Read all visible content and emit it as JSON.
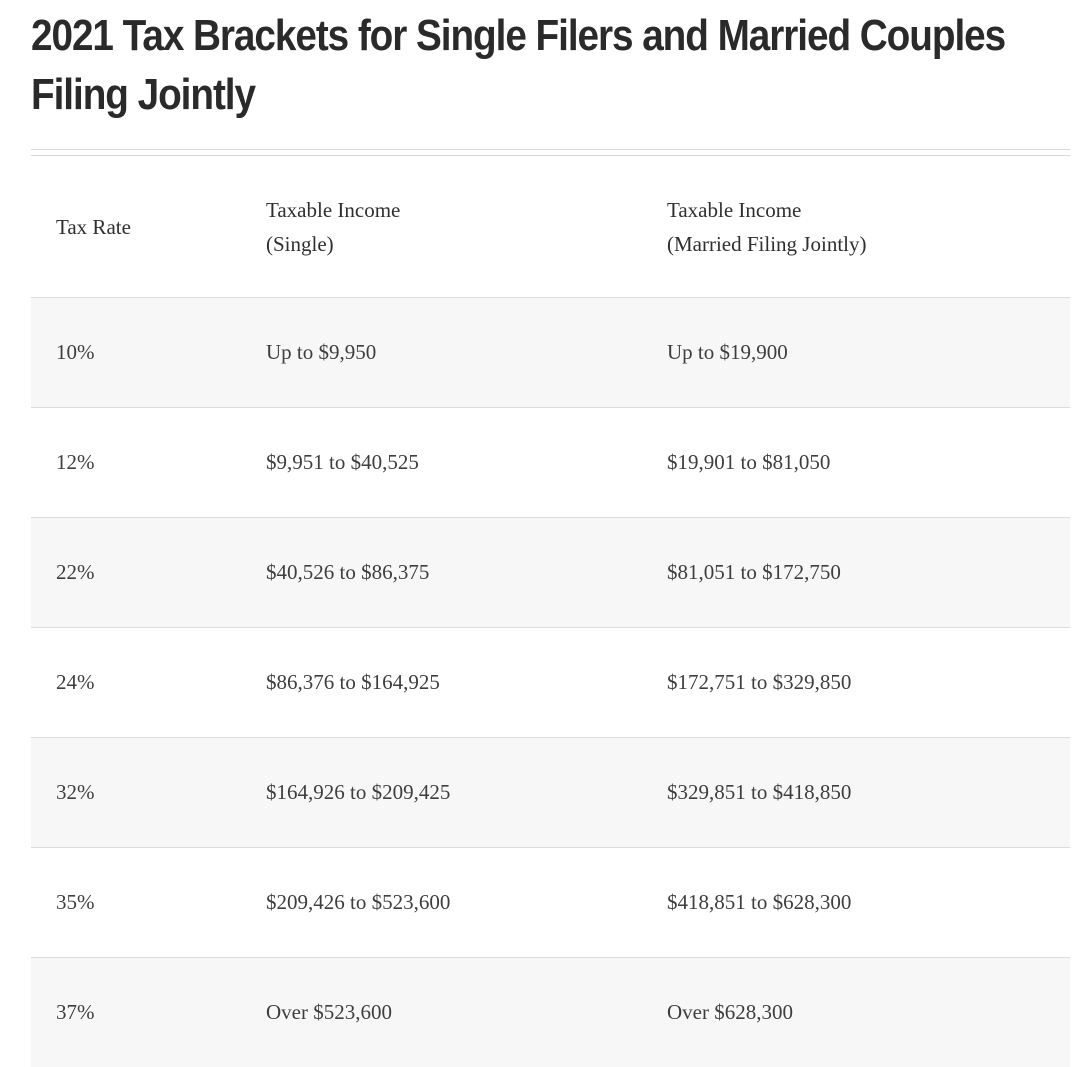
{
  "title": "2021 Tax Brackets for Single Filers and Married Couples Filing Jointly",
  "table": {
    "headers": {
      "rate": "Tax Rate",
      "single_line1": "Taxable Income",
      "single_line2": "(Single)",
      "married_line1": "Taxable Income",
      "married_line2": "(Married Filing Jointly)"
    },
    "rows": [
      {
        "rate": "10%",
        "single": "Up to $9,950",
        "married": "Up to $19,900"
      },
      {
        "rate": "12%",
        "single": "$9,951 to $40,525",
        "married": "$19,901 to $81,050"
      },
      {
        "rate": "22%",
        "single": "$40,526 to $86,375",
        "married": "$81,051 to $172,750"
      },
      {
        "rate": "24%",
        "single": "$86,376 to $164,925",
        "married": "$172,751 to $329,850"
      },
      {
        "rate": "32%",
        "single": "$164,926 to $209,425",
        "married": "$329,851 to $418,850"
      },
      {
        "rate": "35%",
        "single": "$209,426 to $523,600",
        "married": "$418,851 to $628,300"
      },
      {
        "rate": "37%",
        "single": "Over $523,600",
        "married": "Over $628,300"
      }
    ]
  }
}
